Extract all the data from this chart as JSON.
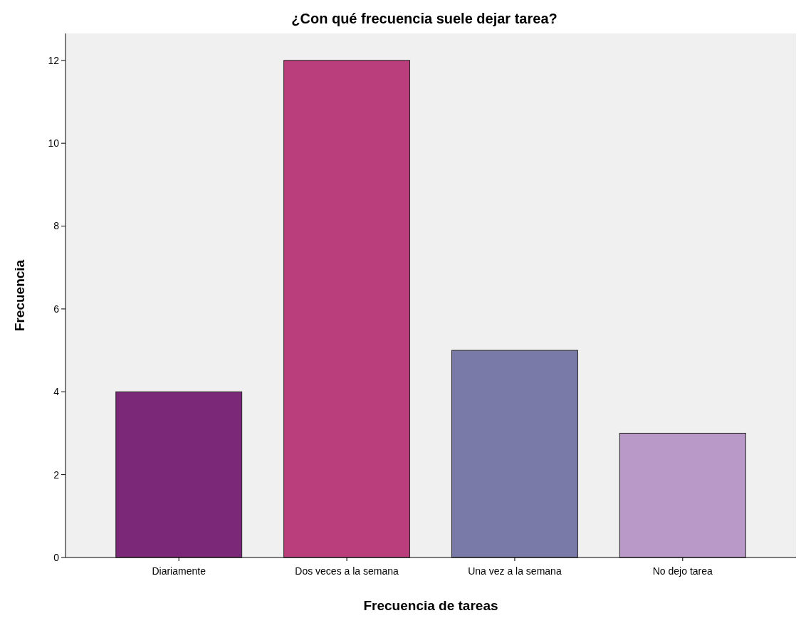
{
  "chart_data": {
    "type": "bar",
    "title": "¿Con qué frecuencia suele dejar tarea?",
    "xlabel": "Frecuencia de tareas",
    "ylabel": "Frecuencia",
    "categories": [
      "Diariamente",
      "Dos veces a la semana",
      "Una vez a la semana",
      "No dejo tarea"
    ],
    "values": [
      4,
      12,
      5,
      3
    ],
    "colors": [
      "#7b2878",
      "#ba3e7b",
      "#7a7aa8",
      "#b899c8"
    ],
    "ylim": [
      0,
      12.65
    ],
    "yticks": [
      0,
      2,
      4,
      6,
      8,
      10,
      12
    ],
    "grid": false
  }
}
